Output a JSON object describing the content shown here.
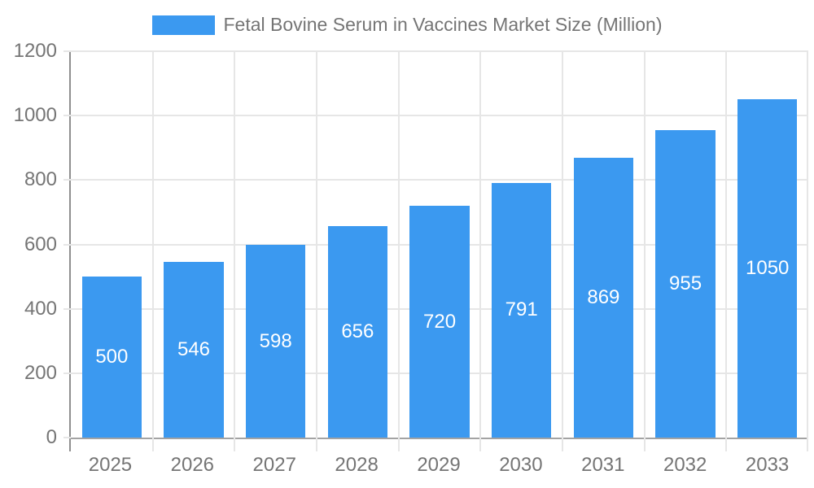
{
  "chart_data": {
    "type": "bar",
    "title": "Fetal Bovine Serum in Vaccines Market Size (Million)",
    "categories": [
      "2025",
      "2026",
      "2027",
      "2028",
      "2029",
      "2030",
      "2031",
      "2032",
      "2033"
    ],
    "values": [
      500,
      546,
      598,
      656,
      720,
      791,
      869,
      955,
      1050
    ],
    "xlabel": "",
    "ylabel": "",
    "ylim": [
      0,
      1200
    ],
    "ytick_step": 200,
    "ytick_labels": [
      "0",
      "200",
      "400",
      "600",
      "800",
      "1000",
      "1200"
    ],
    "grid": true,
    "legend_position": "top",
    "value_labels_shown": true,
    "colors": {
      "bar": "#3B99F0",
      "value_label": "#FFFFFF",
      "axis_text": "#757575",
      "gridline": "#E6E6E6"
    }
  }
}
